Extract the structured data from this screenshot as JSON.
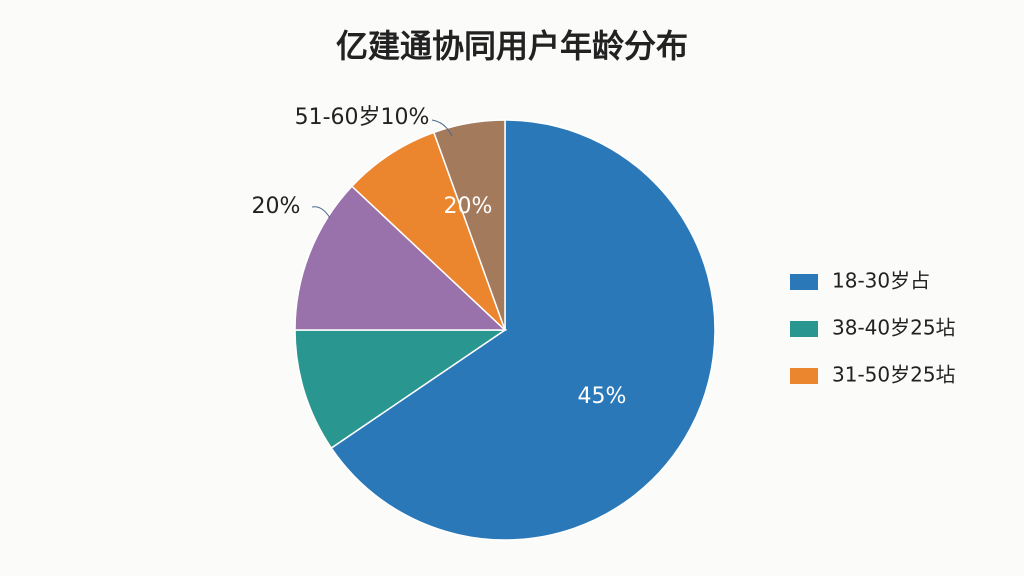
{
  "chart_data": {
    "type": "pie",
    "title": "亿建通协同用户年龄分布",
    "categories": [
      "18-30岁占",
      "38-40岁25坫",
      null,
      "31-50岁25坫",
      null
    ],
    "values": [
      65.5,
      9.5,
      12,
      7.5,
      5.5
    ],
    "colors": [
      "#2a78b8",
      "#2a9690",
      "#9a72ab",
      "#ec862e",
      "#a47a5c"
    ],
    "annotations": [
      "45%",
      "20%",
      "20%",
      "51-60岁10%"
    ],
    "legend": "right"
  }
}
